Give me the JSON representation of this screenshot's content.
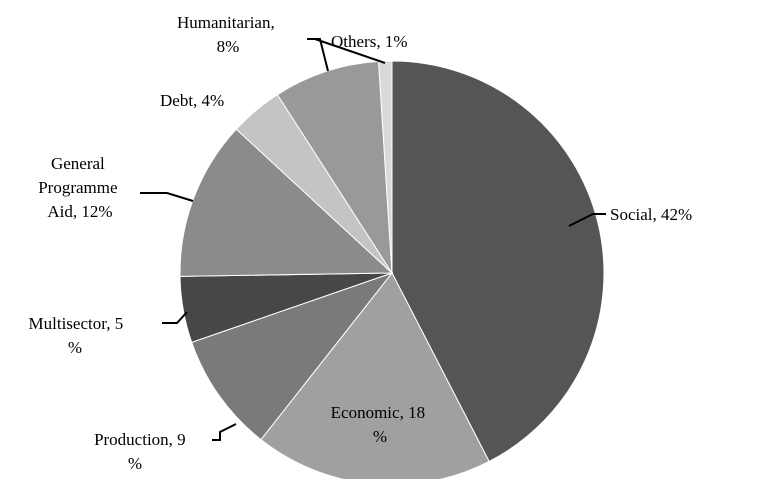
{
  "chart_data": {
    "type": "pie",
    "title": "",
    "start": "12 o'clock",
    "direction": "clockwise",
    "legend": "none",
    "slices": [
      {
        "name": "Social",
        "value": 42,
        "color": "#555555",
        "label": "Social, 42%"
      },
      {
        "name": "Economic",
        "value": 18,
        "color": "#a0a0a0",
        "label": [
          "Economic, 18",
          "%"
        ]
      },
      {
        "name": "Production",
        "value": 9,
        "color": "#7a7a7a",
        "label": [
          "Production, 9",
          "%"
        ]
      },
      {
        "name": "Multisector",
        "value": 5,
        "color": "#474747",
        "label": [
          "Multisector, 5",
          "%"
        ]
      },
      {
        "name": "General Programme Aid",
        "value": 12,
        "color": "#8b8b8b",
        "label": [
          "General",
          "Programme",
          "Aid, 12%"
        ]
      },
      {
        "name": "Debt",
        "value": 4,
        "color": "#c4c4c4",
        "label": "Debt, 4%"
      },
      {
        "name": "Humanitarian",
        "value": 8,
        "color": "#999999",
        "label": [
          "Humanitarian,",
          "8%"
        ]
      },
      {
        "name": "Others",
        "value": 1,
        "color": "#d9d9d9",
        "label": "Others, 1%"
      }
    ]
  }
}
